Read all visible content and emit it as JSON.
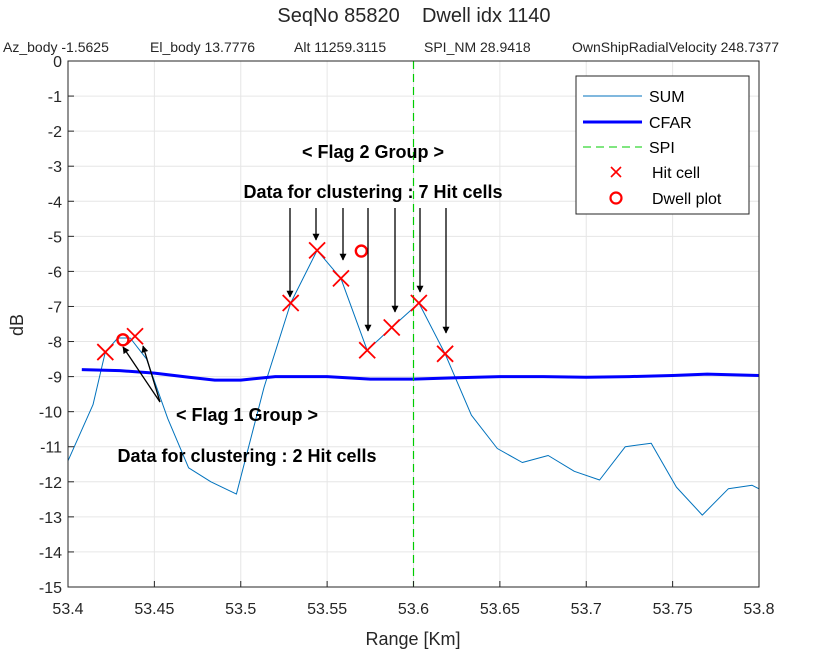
{
  "chart_data": {
    "type": "line",
    "title": "SeqNo 85820    Dwell idx 1140",
    "subtitle": {
      "az": "Az_body -1.5625",
      "el": "El_body 13.7776",
      "alt": "Alt 11259.3115",
      "spi": "SPI_NM 28.9418",
      "vel": "OwnShipRadialVelocity 248.7377"
    },
    "xlabel": "Range [Km]",
    "ylabel": "dB",
    "xlim": [
      53.4,
      53.8
    ],
    "ylim": [
      -15,
      0
    ],
    "x_ticks": [
      53.4,
      53.45,
      53.5,
      53.55,
      53.6,
      53.65,
      53.7,
      53.75,
      53.8
    ],
    "x_tick_labels": [
      "53.4",
      "53.45",
      "53.5",
      "53.55",
      "53.6",
      "53.65",
      "53.7",
      "53.75",
      "53.8"
    ],
    "y_ticks": [
      0,
      -1,
      -2,
      -3,
      -4,
      -5,
      -6,
      -7,
      -8,
      -9,
      -10,
      -11,
      -12,
      -13,
      -14,
      -15
    ],
    "y_tick_labels": [
      "0",
      "-1",
      "-2",
      "-3",
      "-4",
      "-5",
      "-6",
      "-7",
      "-8",
      "-9",
      "-10",
      "-11",
      "-12",
      "-13",
      "-14",
      "-15"
    ],
    "grid": true,
    "legend_position": "top-right",
    "series": [
      {
        "name": "SUM",
        "kind": "line",
        "color": "#0072BD",
        "x": [
          53.4,
          53.4145,
          53.4216,
          53.4288,
          53.436,
          53.4455,
          53.4578,
          53.4698,
          53.4827,
          53.4975,
          53.5135,
          53.5289,
          53.5442,
          53.558,
          53.5732,
          53.5874,
          53.6031,
          53.6183,
          53.6335,
          53.6485,
          53.663,
          53.678,
          53.6931,
          53.7077,
          53.7226,
          53.7376,
          53.7522,
          53.7672,
          53.7822,
          53.796,
          53.8
        ],
        "y": [
          -11.4,
          -9.8,
          -8.3,
          -7.9,
          -7.9,
          -8.5,
          -10.2,
          -11.6,
          -12.0,
          -12.35,
          -9.3,
          -6.9,
          -5.4,
          -6.2,
          -8.25,
          -7.6,
          -6.9,
          -8.35,
          -10.1,
          -11.05,
          -11.45,
          -11.25,
          -11.7,
          -11.95,
          -11.0,
          -10.9,
          -12.15,
          -12.95,
          -12.2,
          -12.1,
          -12.2
        ]
      },
      {
        "name": "CFAR",
        "kind": "line",
        "color": "#0000FF",
        "x": [
          53.408,
          53.43,
          53.45,
          53.47,
          53.485,
          53.5,
          53.52,
          53.55,
          53.575,
          53.6,
          53.625,
          53.65,
          53.675,
          53.7,
          53.725,
          53.75,
          53.77,
          53.8
        ],
        "y": [
          -8.8,
          -8.83,
          -8.9,
          -9.02,
          -9.1,
          -9.1,
          -9.0,
          -9.0,
          -9.07,
          -9.07,
          -9.03,
          -9.0,
          -9.0,
          -9.02,
          -9.0,
          -8.97,
          -8.93,
          -8.97
        ]
      },
      {
        "name": "SPI",
        "kind": "vline",
        "color": "#00CC00",
        "x_value": 53.6
      },
      {
        "name": "Hit cell",
        "kind": "marker-x",
        "color": "#FF0000",
        "x": [
          53.4216,
          53.4388,
          53.5289,
          53.5442,
          53.558,
          53.5732,
          53.5874,
          53.6031,
          53.6183
        ],
        "y": [
          -8.3,
          -7.85,
          -6.9,
          -5.4,
          -6.2,
          -8.25,
          -7.6,
          -6.9,
          -8.35
        ]
      },
      {
        "name": "Dwell plot",
        "kind": "marker-o",
        "color": "#FF0000",
        "x": [
          53.4318,
          53.5698
        ],
        "y": [
          -7.95,
          -5.42
        ]
      }
    ],
    "annotations": {
      "flag2_title": "< Flag 2 Group >",
      "flag2_data": "Data for clustering : 7 Hit cells",
      "flag1_title": "< Flag 1 Group >",
      "flag1_data": "Data for clustering : 2 Hit cells"
    }
  }
}
